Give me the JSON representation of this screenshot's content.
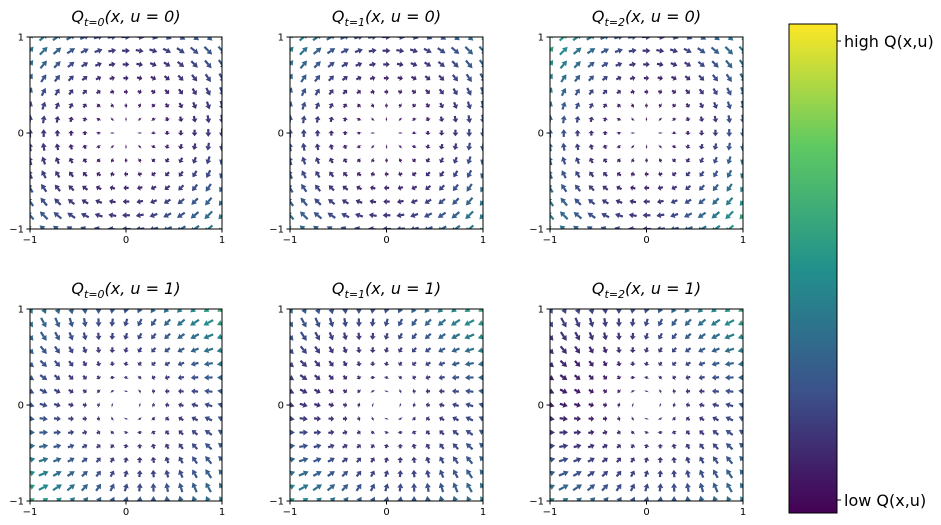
{
  "chart_data": {
    "type": "quiver",
    "colormap": "viridis",
    "colormap_stops": [
      "#440154",
      "#3b528b",
      "#21918c",
      "#5ec962",
      "#fde725"
    ],
    "grid_points_per_axis": 15,
    "panels": [
      {
        "title_base": "Q",
        "title_sub": "t=0",
        "title_args": "(x, u = 0)",
        "action": 0,
        "t": 0,
        "xlim": [
          -1,
          1
        ],
        "ylim": [
          -1,
          1
        ],
        "xticks": [
          "−1",
          "0",
          "1"
        ],
        "yticks": [
          "−1",
          "0",
          "1"
        ]
      },
      {
        "title_base": "Q",
        "title_sub": "t=1",
        "title_args": "(x, u = 0)",
        "action": 0,
        "t": 1,
        "xlim": [
          -1,
          1
        ],
        "ylim": [
          -1,
          1
        ],
        "xticks": [
          "−1",
          "0",
          "1"
        ],
        "yticks": [
          "−1",
          "0",
          "1"
        ]
      },
      {
        "title_base": "Q",
        "title_sub": "t=2",
        "title_args": "(x, u = 0)",
        "action": 0,
        "t": 2,
        "xlim": [
          -1,
          1
        ],
        "ylim": [
          -1,
          1
        ],
        "xticks": [
          "−1",
          "0",
          "1"
        ],
        "yticks": [
          "−1",
          "0",
          "1"
        ]
      },
      {
        "title_base": "Q",
        "title_sub": "t=0",
        "title_args": "(x, u = 1)",
        "action": 1,
        "t": 0,
        "xlim": [
          -1,
          1
        ],
        "ylim": [
          -1,
          1
        ],
        "xticks": [
          "−1",
          "0",
          "1"
        ],
        "yticks": [
          "−1",
          "0",
          "1"
        ]
      },
      {
        "title_base": "Q",
        "title_sub": "t=1",
        "title_args": "(x, u = 1)",
        "action": 1,
        "t": 1,
        "xlim": [
          -1,
          1
        ],
        "ylim": [
          -1,
          1
        ],
        "xticks": [
          "−1",
          "0",
          "1"
        ],
        "yticks": [
          "−1",
          "0",
          "1"
        ]
      },
      {
        "title_base": "Q",
        "title_sub": "t=2",
        "title_args": "(x, u = 1)",
        "action": 1,
        "t": 2,
        "xlim": [
          -1,
          1
        ],
        "ylim": [
          -1,
          1
        ],
        "xticks": [
          "−1",
          "0",
          "1"
        ],
        "yticks": [
          "−1",
          "0",
          "1"
        ]
      }
    ],
    "colorbar": {
      "high_label": "high Q(x,u)",
      "low_label": "low Q(x,u)"
    }
  }
}
